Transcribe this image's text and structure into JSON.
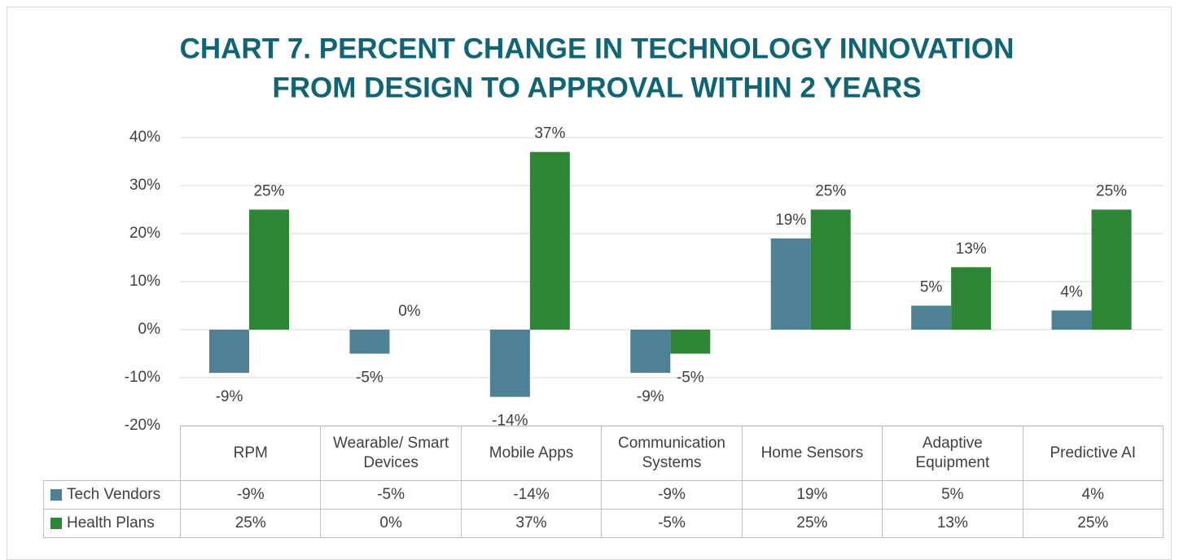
{
  "chart_data": {
    "type": "bar",
    "title": [
      "CHART 7. PERCENT CHANGE IN TECHNOLOGY INNOVATION",
      "FROM DESIGN TO APPROVAL WITHIN 2 YEARS"
    ],
    "categories": [
      "RPM",
      "Wearable/ Smart Devices",
      "Mobile Apps",
      "Communication Systems",
      "Home Sensors",
      "Adaptive Equipment",
      "Predictive AI"
    ],
    "series": [
      {
        "name": "Tech Vendors",
        "color": "#4e8096",
        "values": [
          -9,
          -5,
          -14,
          -9,
          19,
          5,
          4
        ],
        "value_labels": [
          "-9%",
          "-5%",
          "-14%",
          "-9%",
          "19%",
          "5%",
          "4%"
        ]
      },
      {
        "name": "Health Plans",
        "color": "#2f8536",
        "values": [
          25,
          0,
          37,
          -5,
          25,
          13,
          25
        ],
        "value_labels": [
          "25%",
          "0%",
          "37%",
          "-5%",
          "25%",
          "13%",
          "25%"
        ]
      }
    ],
    "ylim": [
      -20,
      40
    ],
    "yticks": [
      {
        "value": -20,
        "label": "-20%"
      },
      {
        "value": -10,
        "label": "-10%"
      },
      {
        "value": 0,
        "label": "0%"
      },
      {
        "value": 10,
        "label": "10%"
      },
      {
        "value": 20,
        "label": "20%"
      },
      {
        "value": 30,
        "label": "30%"
      },
      {
        "value": 40,
        "label": "40%"
      }
    ],
    "grid": true,
    "data_table": true
  }
}
